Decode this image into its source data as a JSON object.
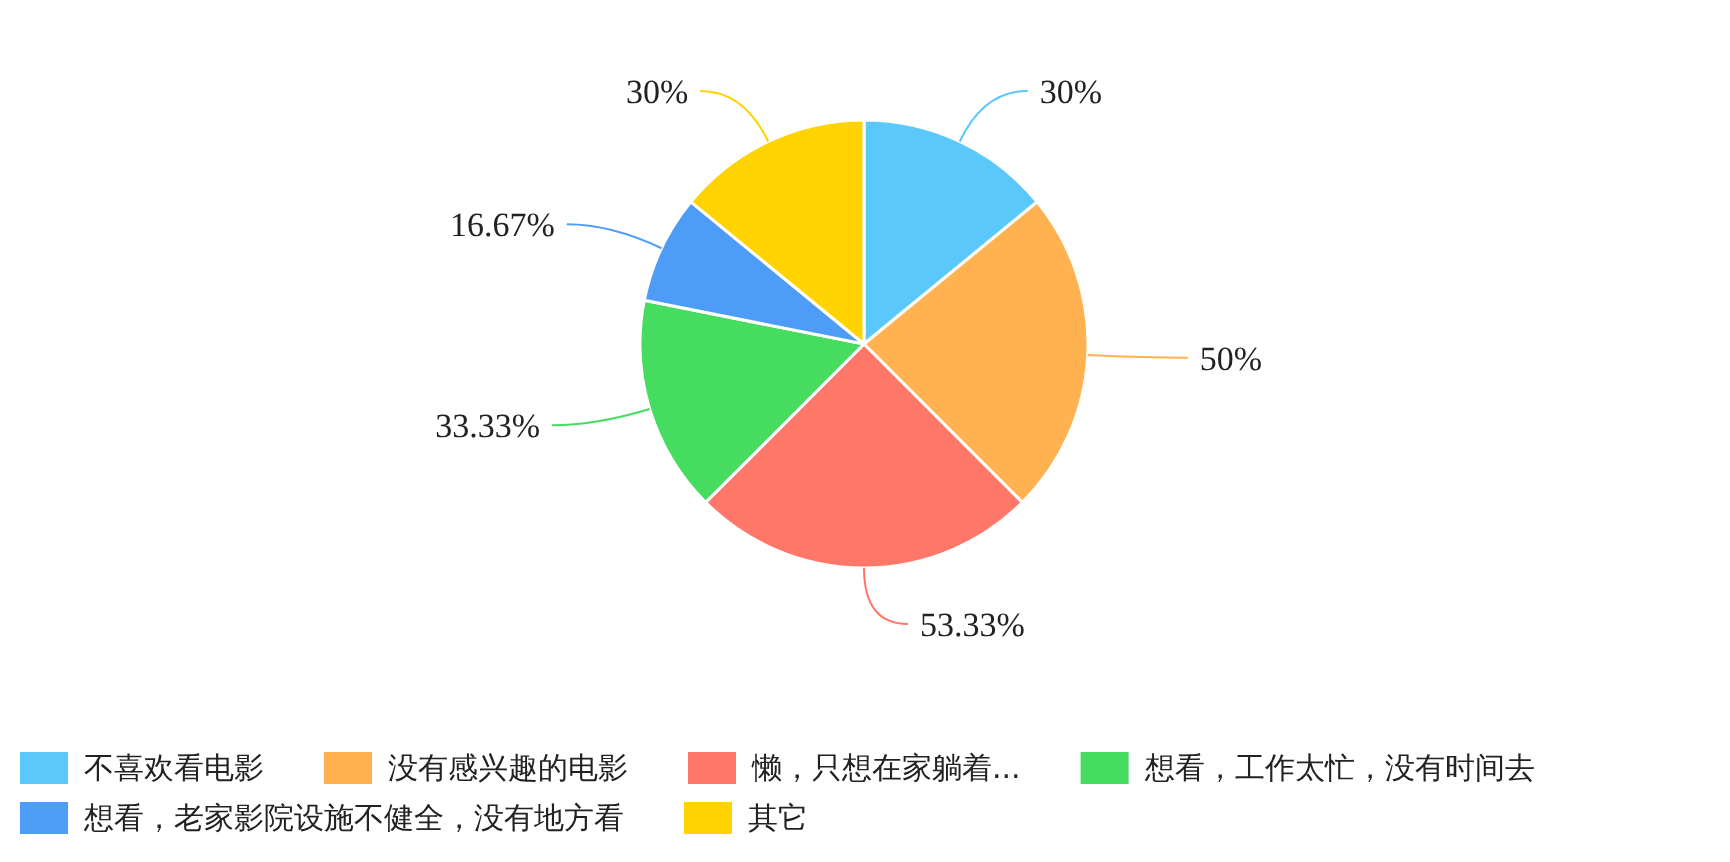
{
  "chart_data": {
    "type": "pie",
    "categories": [
      "不喜欢看电影",
      "没有感兴趣的电影",
      "懒，只想在家躺着...",
      "想看，工作太忙，没有时间去",
      "想看，老家影院设施不健全，没有地方看",
      "其它"
    ],
    "values": [
      30,
      50,
      53.33,
      33.33,
      16.67,
      30
    ],
    "value_labels": [
      "30%",
      "50%",
      "53.33%",
      "33.33%",
      "16.67%",
      "30%"
    ],
    "colors": [
      "#5ac8fa",
      "#ffb24f",
      "#ff7768",
      "#46dc5f",
      "#4d9df8",
      "#ffd300"
    ],
    "legend": "bottom"
  }
}
